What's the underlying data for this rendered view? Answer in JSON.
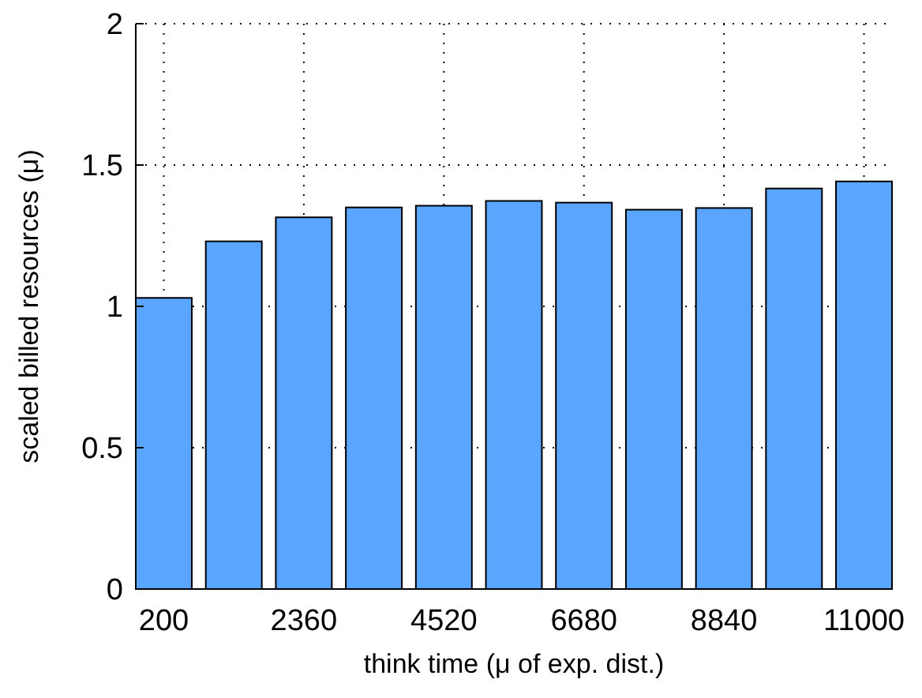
{
  "chart_data": {
    "type": "bar",
    "xlabel": "think time (μ of exp. dist.)",
    "ylabel": "scaled billed resources (μ)",
    "categories": [
      "200",
      null,
      "2360",
      null,
      "4520",
      null,
      "6680",
      null,
      "8840",
      null,
      "11000"
    ],
    "values": [
      1.03,
      1.23,
      1.315,
      1.35,
      1.356,
      1.373,
      1.367,
      1.342,
      1.348,
      1.417,
      1.442
    ],
    "color": "#5aa5ff",
    "ylim": [
      0,
      2
    ],
    "yticks": [
      0,
      0.5,
      1,
      1.5,
      2
    ],
    "grid": true
  }
}
